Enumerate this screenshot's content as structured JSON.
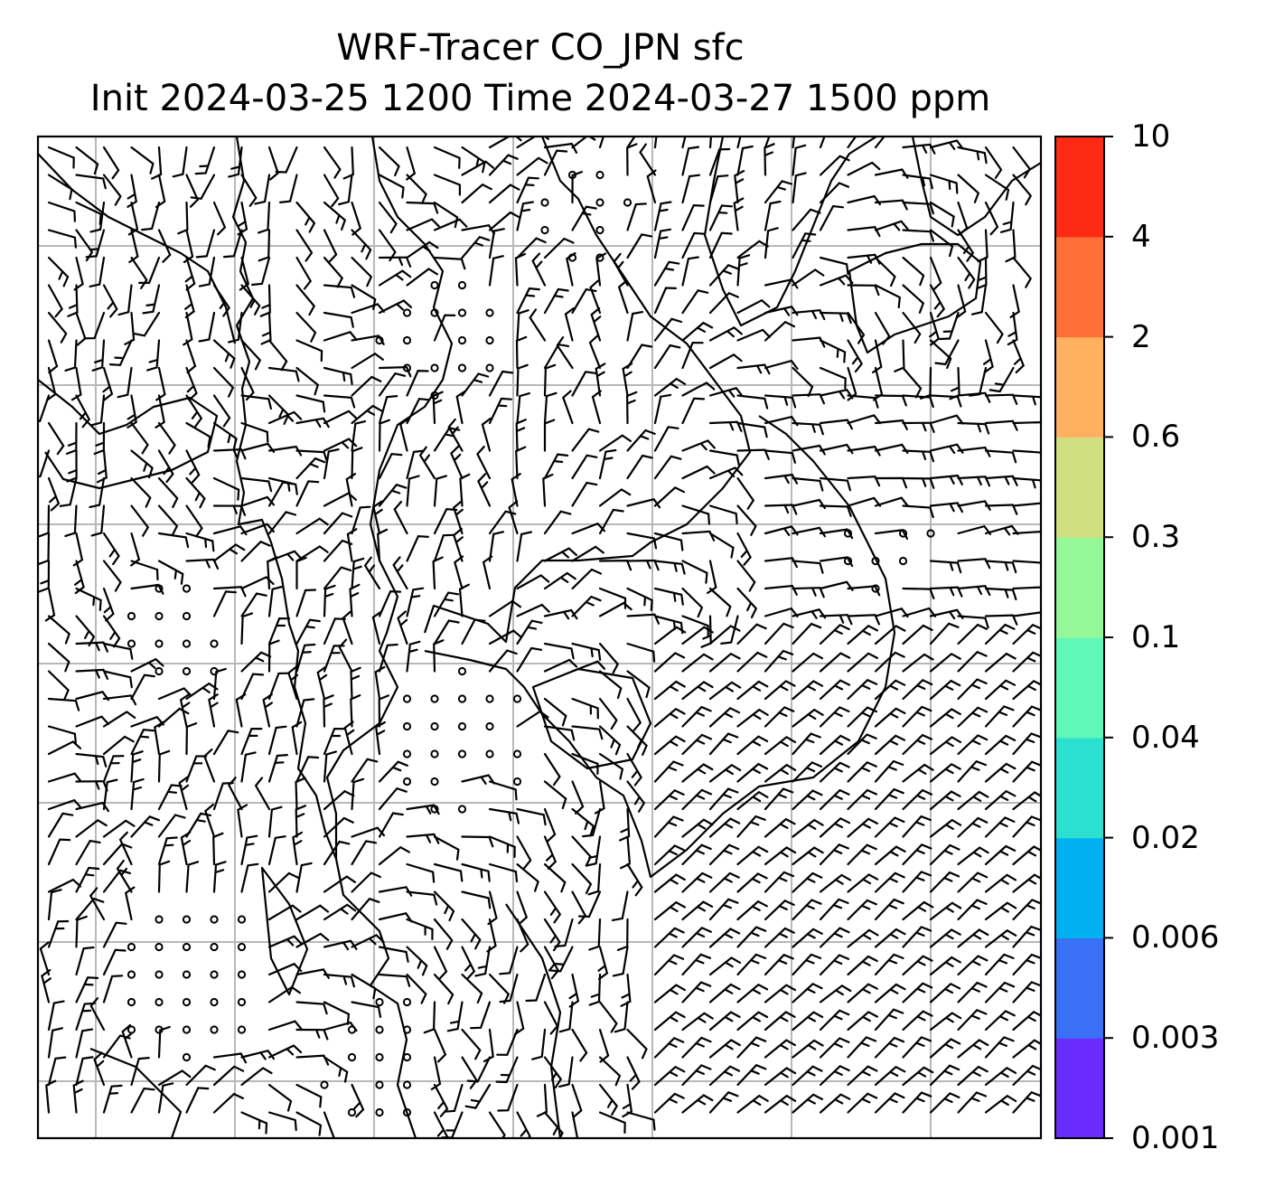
{
  "title": {
    "line1": "WRF-Tracer CO_JPN sfc",
    "line2": "Init 2024-03-25 1200 Time 2024-03-27 1500 ppm"
  },
  "colorbar": {
    "levels": [
      "0.001",
      "0.003",
      "0.006",
      "0.02",
      "0.04",
      "0.1",
      "0.3",
      "0.6",
      "2",
      "4",
      "10"
    ],
    "colors": [
      "#6a2bff",
      "#3a70f5",
      "#00b0f0",
      "#2ce0d0",
      "#5ff8b8",
      "#94f798",
      "#d0e080",
      "#ffb060",
      "#ff7038",
      "#ff2a14"
    ]
  },
  "map": {
    "field": "surface wind barbs",
    "grid_lines": true,
    "grid_color": "#b8b8b8"
  }
}
